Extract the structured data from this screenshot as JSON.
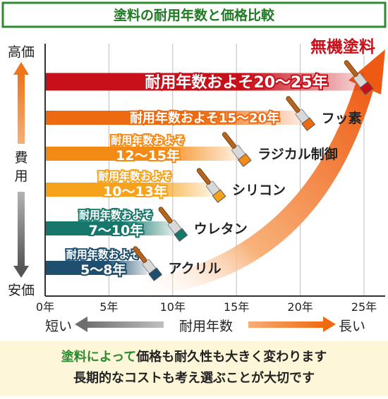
{
  "title": "塗料の耐用年数と価格比較",
  "y_axis": {
    "top": "高価",
    "middle": "費用",
    "bottom": "安価"
  },
  "x_axis": {
    "ticks": [
      "0年",
      "5年",
      "10年",
      "15年",
      "20年",
      "25年"
    ],
    "left_label": "短い",
    "center_label": "耐用年数",
    "right_label": "長い"
  },
  "highlight_label": "無機塗料",
  "footer": {
    "line1_highlight": "塗料によって",
    "line1_rest": "価格も耐久性も大きく変わります",
    "line2": "長期的なコストも考え選ぶことが大切です"
  },
  "colors": {
    "title_border": "#2e8b32",
    "title_text": "#1f7a23",
    "footer_bg": "#fdf6d8",
    "inorganic": "#c8101a",
    "fluorine": "#ee6a10",
    "radical": "#f48a16",
    "silicone": "#f6a21a",
    "urethane": "#17776b",
    "acrylic": "#1e4f6e"
  },
  "chart_data": {
    "type": "bar",
    "orientation": "horizontal",
    "xlabel": "耐用年数",
    "ylabel": "費用",
    "xlim": [
      0,
      25
    ],
    "x_ticks": [
      0,
      5,
      10,
      15,
      20,
      25
    ],
    "grid": true,
    "series": [
      {
        "name": "無機塗料",
        "duration_min": 20,
        "duration_max": 25,
        "range_label": "耐用年数およそ20～25年",
        "color": "#c8101a"
      },
      {
        "name": "フッ素",
        "duration_min": 15,
        "duration_max": 20,
        "range_label": "耐用年数およそ15～20年",
        "color": "#ee6a10"
      },
      {
        "name": "ラジカル制御",
        "duration_min": 12,
        "duration_max": 15,
        "range_label_line1": "耐用年数およそ",
        "range_label_line2": "12～15年",
        "color": "#f48a16"
      },
      {
        "name": "シリコン",
        "duration_min": 10,
        "duration_max": 13,
        "range_label_line1": "耐用年数およそ",
        "range_label_line2": "10～13年",
        "color": "#f6a21a"
      },
      {
        "name": "ウレタン",
        "duration_min": 7,
        "duration_max": 10,
        "range_label_line1": "耐用年数およそ",
        "range_label_line2": "7～10年",
        "color": "#17776b"
      },
      {
        "name": "アクリル",
        "duration_min": 5,
        "duration_max": 8,
        "range_label_line1": "耐用年数およそ",
        "range_label_line2": "5～8年",
        "color": "#1e4f6e"
      }
    ]
  }
}
